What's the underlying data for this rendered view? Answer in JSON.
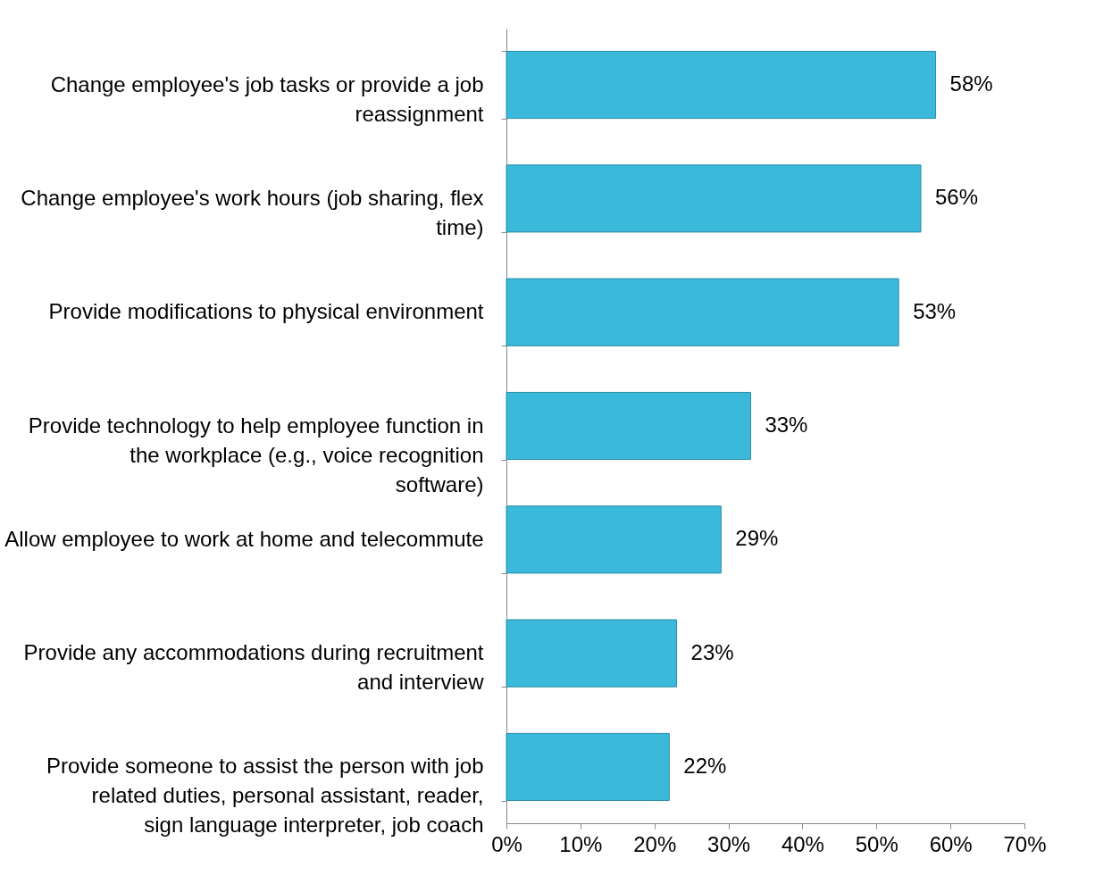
{
  "chart_data": {
    "type": "bar",
    "orientation": "horizontal",
    "categories": [
      "Change employee's job tasks or provide a job reassignment",
      "Change employee's work hours (job sharing, flex time)",
      "Provide modifications to physical environment",
      "Provide technology to help employee function in the workplace (e.g., voice recognition software)",
      "Allow employee to work at home and telecommute",
      "Provide any accommodations during recruitment and interview",
      "Provide someone to assist the person with job related duties, personal assistant, reader, sign language interpreter, job coach"
    ],
    "values": [
      58,
      56,
      53,
      33,
      29,
      23,
      22
    ],
    "value_labels": [
      "58%",
      "56%",
      "53%",
      "33%",
      "29%",
      "23%",
      "22%"
    ],
    "color": "#3bb9da",
    "xlim": [
      0,
      70
    ],
    "xticks": [
      {
        "value": 0,
        "label": "0%"
      },
      {
        "value": 10,
        "label": "10%"
      },
      {
        "value": 20,
        "label": "20%"
      },
      {
        "value": 30,
        "label": "30%"
      },
      {
        "value": 40,
        "label": "40%"
      },
      {
        "value": 50,
        "label": "50%"
      },
      {
        "value": 60,
        "label": "60%"
      },
      {
        "value": 70,
        "label": "70%"
      }
    ],
    "grid": false
  }
}
